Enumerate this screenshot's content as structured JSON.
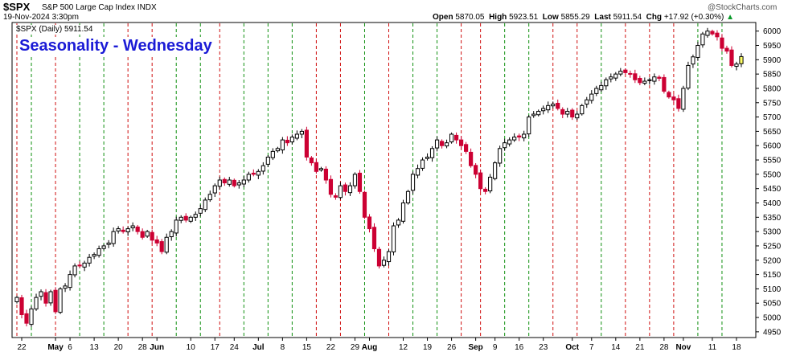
{
  "header": {
    "symbol": "$SPX",
    "description": "S&P 500 Large Cap Index INDX",
    "date": "19-Nov-2024 3:30pm",
    "open_label": "Open",
    "open": "5870.05",
    "high_label": "High",
    "high": "5923.51",
    "low_label": "Low",
    "low": "5855.29",
    "last_label": "Last",
    "last": "5911.54",
    "chg_label": "Chg",
    "chg": "+17.92 (+0.30%)",
    "watermark": "@StockCharts.com",
    "legend": "$SPX (Daily) 5911.54"
  },
  "chart_data": {
    "type": "candlestick",
    "title": "Seasonality - Wednesday",
    "ylim": [
      4930,
      6030
    ],
    "yticks": [
      4950,
      5000,
      5050,
      5100,
      5150,
      5200,
      5250,
      5300,
      5350,
      5400,
      5450,
      5500,
      5550,
      5600,
      5650,
      5700,
      5750,
      5800,
      5850,
      5900,
      5950,
      6000
    ],
    "x_tick_labels": [
      {
        "label": "22",
        "index": 1
      },
      {
        "label": "May",
        "index": 8
      },
      {
        "label": "6",
        "index": 11
      },
      {
        "label": "13",
        "index": 16
      },
      {
        "label": "20",
        "index": 21
      },
      {
        "label": "28",
        "index": 26
      },
      {
        "label": "Jun",
        "index": 29
      },
      {
        "label": "10",
        "index": 36
      },
      {
        "label": "17",
        "index": 41
      },
      {
        "label": "24",
        "index": 45
      },
      {
        "label": "Jul",
        "index": 50
      },
      {
        "label": "8",
        "index": 55
      },
      {
        "label": "15",
        "index": 60
      },
      {
        "label": "22",
        "index": 65
      },
      {
        "label": "29",
        "index": 70
      },
      {
        "label": "Aug",
        "index": 73
      },
      {
        "label": "12",
        "index": 80
      },
      {
        "label": "19",
        "index": 85
      },
      {
        "label": "26",
        "index": 90
      },
      {
        "label": "Sep",
        "index": 95
      },
      {
        "label": "9",
        "index": 99
      },
      {
        "label": "16",
        "index": 104
      },
      {
        "label": "23",
        "index": 109
      },
      {
        "label": "Oct",
        "index": 115
      },
      {
        "label": "7",
        "index": 119
      },
      {
        "label": "14",
        "index": 124
      },
      {
        "label": "21",
        "index": 129
      },
      {
        "label": "28",
        "index": 134
      },
      {
        "label": "Nov",
        "index": 138
      },
      {
        "label": "11",
        "index": 144
      },
      {
        "label": "18",
        "index": 149
      }
    ],
    "x_count": 153,
    "wednesday_markers": [
      {
        "index": 0,
        "color": "red"
      },
      {
        "index": 3,
        "color": "green"
      },
      {
        "index": 8,
        "color": "red"
      },
      {
        "index": 13,
        "color": "green"
      },
      {
        "index": 18,
        "color": "green"
      },
      {
        "index": 23,
        "color": "red"
      },
      {
        "index": 28,
        "color": "red"
      },
      {
        "index": 33,
        "color": "green"
      },
      {
        "index": 38,
        "color": "green"
      },
      {
        "index": 42,
        "color": "red"
      },
      {
        "index": 47,
        "color": "green"
      },
      {
        "index": 52,
        "color": "green"
      },
      {
        "index": 57,
        "color": "green"
      },
      {
        "index": 62,
        "color": "red"
      },
      {
        "index": 67,
        "color": "red"
      },
      {
        "index": 72,
        "color": "green"
      },
      {
        "index": 77,
        "color": "red"
      },
      {
        "index": 82,
        "color": "green"
      },
      {
        "index": 87,
        "color": "green"
      },
      {
        "index": 92,
        "color": "red"
      },
      {
        "index": 96,
        "color": "red"
      },
      {
        "index": 101,
        "color": "green"
      },
      {
        "index": 106,
        "color": "green"
      },
      {
        "index": 111,
        "color": "red"
      },
      {
        "index": 116,
        "color": "red"
      },
      {
        "index": 121,
        "color": "green"
      },
      {
        "index": 126,
        "color": "red"
      },
      {
        "index": 131,
        "color": "red"
      },
      {
        "index": 136,
        "color": "red"
      },
      {
        "index": 141,
        "color": "green"
      },
      {
        "index": 146,
        "color": "green"
      }
    ],
    "closes": [
      5070,
      5010,
      4980,
      5030,
      5070,
      5090,
      5050,
      5090,
      5020,
      5100,
      5110,
      5150,
      5180,
      5180,
      5190,
      5210,
      5220,
      5240,
      5250,
      5260,
      5300,
      5310,
      5300,
      5310,
      5320,
      5300,
      5280,
      5300,
      5270,
      5260,
      5230,
      5280,
      5300,
      5340,
      5350,
      5340,
      5350,
      5360,
      5380,
      5410,
      5430,
      5460,
      5480,
      5470,
      5480,
      5460,
      5470,
      5480,
      5500,
      5500,
      5510,
      5530,
      5560,
      5580,
      5590,
      5620,
      5610,
      5630,
      5640,
      5650,
      5560,
      5540,
      5510,
      5520,
      5480,
      5430,
      5420,
      5460,
      5440,
      5460,
      5500,
      5440,
      5350,
      5310,
      5240,
      5180,
      5200,
      5230,
      5320,
      5340,
      5400,
      5440,
      5500,
      5520,
      5550,
      5560,
      5590,
      5620,
      5600,
      5610,
      5640,
      5620,
      5600,
      5580,
      5530,
      5500,
      5450,
      5440,
      5490,
      5540,
      5590,
      5610,
      5620,
      5630,
      5630,
      5640,
      5700,
      5710,
      5720,
      5730,
      5740,
      5745,
      5730,
      5710,
      5720,
      5700,
      5710,
      5740,
      5760,
      5780,
      5800,
      5810,
      5830,
      5840,
      5850,
      5860,
      5855,
      5850,
      5830,
      5820,
      5825,
      5830,
      5840,
      5835,
      5790,
      5770,
      5760,
      5730,
      5800,
      5880,
      5910,
      5950,
      5990,
      6000,
      5990,
      5980,
      5940,
      5930,
      5880,
      5885,
      5911
    ]
  }
}
